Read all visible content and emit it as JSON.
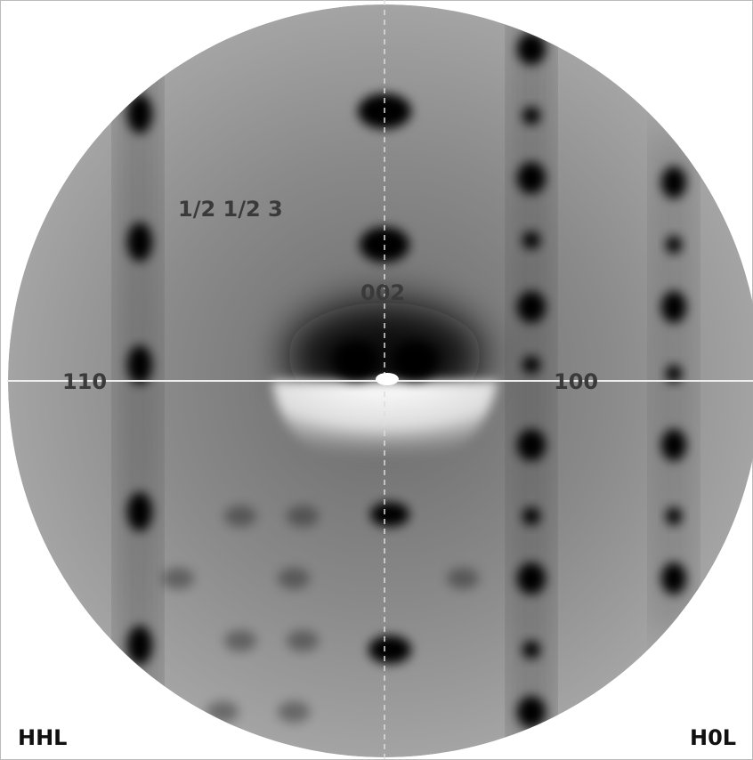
{
  "labels": {
    "half_half_three": "1/2 1/2 3",
    "zero_zero_two": "002",
    "one_one_zero": "110",
    "one_zero_zero": "100"
  },
  "corners": {
    "left": "HHL",
    "right": "H0L"
  }
}
